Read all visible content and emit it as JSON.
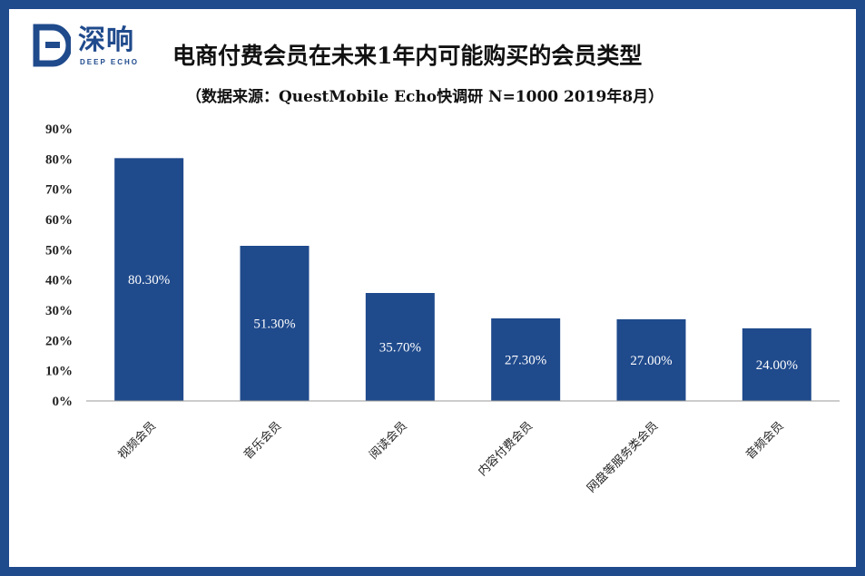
{
  "logo": {
    "text": "深响",
    "sub": "DEEP ECHO"
  },
  "chart_data": {
    "type": "bar",
    "title": "电商付费会员在未来1年内可能购买的会员类型",
    "subtitle": "（数据来源：QuestMobile Echo快调研 N=1000 2019年8月）",
    "categories": [
      "视频会员",
      "音乐会员",
      "阅读会员",
      "内容付费会员",
      "网盘等服务类会员",
      "音频会员"
    ],
    "values": [
      80.3,
      51.3,
      35.7,
      27.3,
      27.0,
      24.0
    ],
    "value_labels": [
      "80.30%",
      "51.30%",
      "35.70%",
      "27.30%",
      "27.00%",
      "24.00%"
    ],
    "yticks": [
      "0%",
      "10%",
      "20%",
      "30%",
      "40%",
      "50%",
      "60%",
      "70%",
      "80%",
      "90%"
    ],
    "ylim": [
      0,
      90
    ],
    "bar_color": "#1f4a8c",
    "grid": false,
    "legend": "none"
  }
}
